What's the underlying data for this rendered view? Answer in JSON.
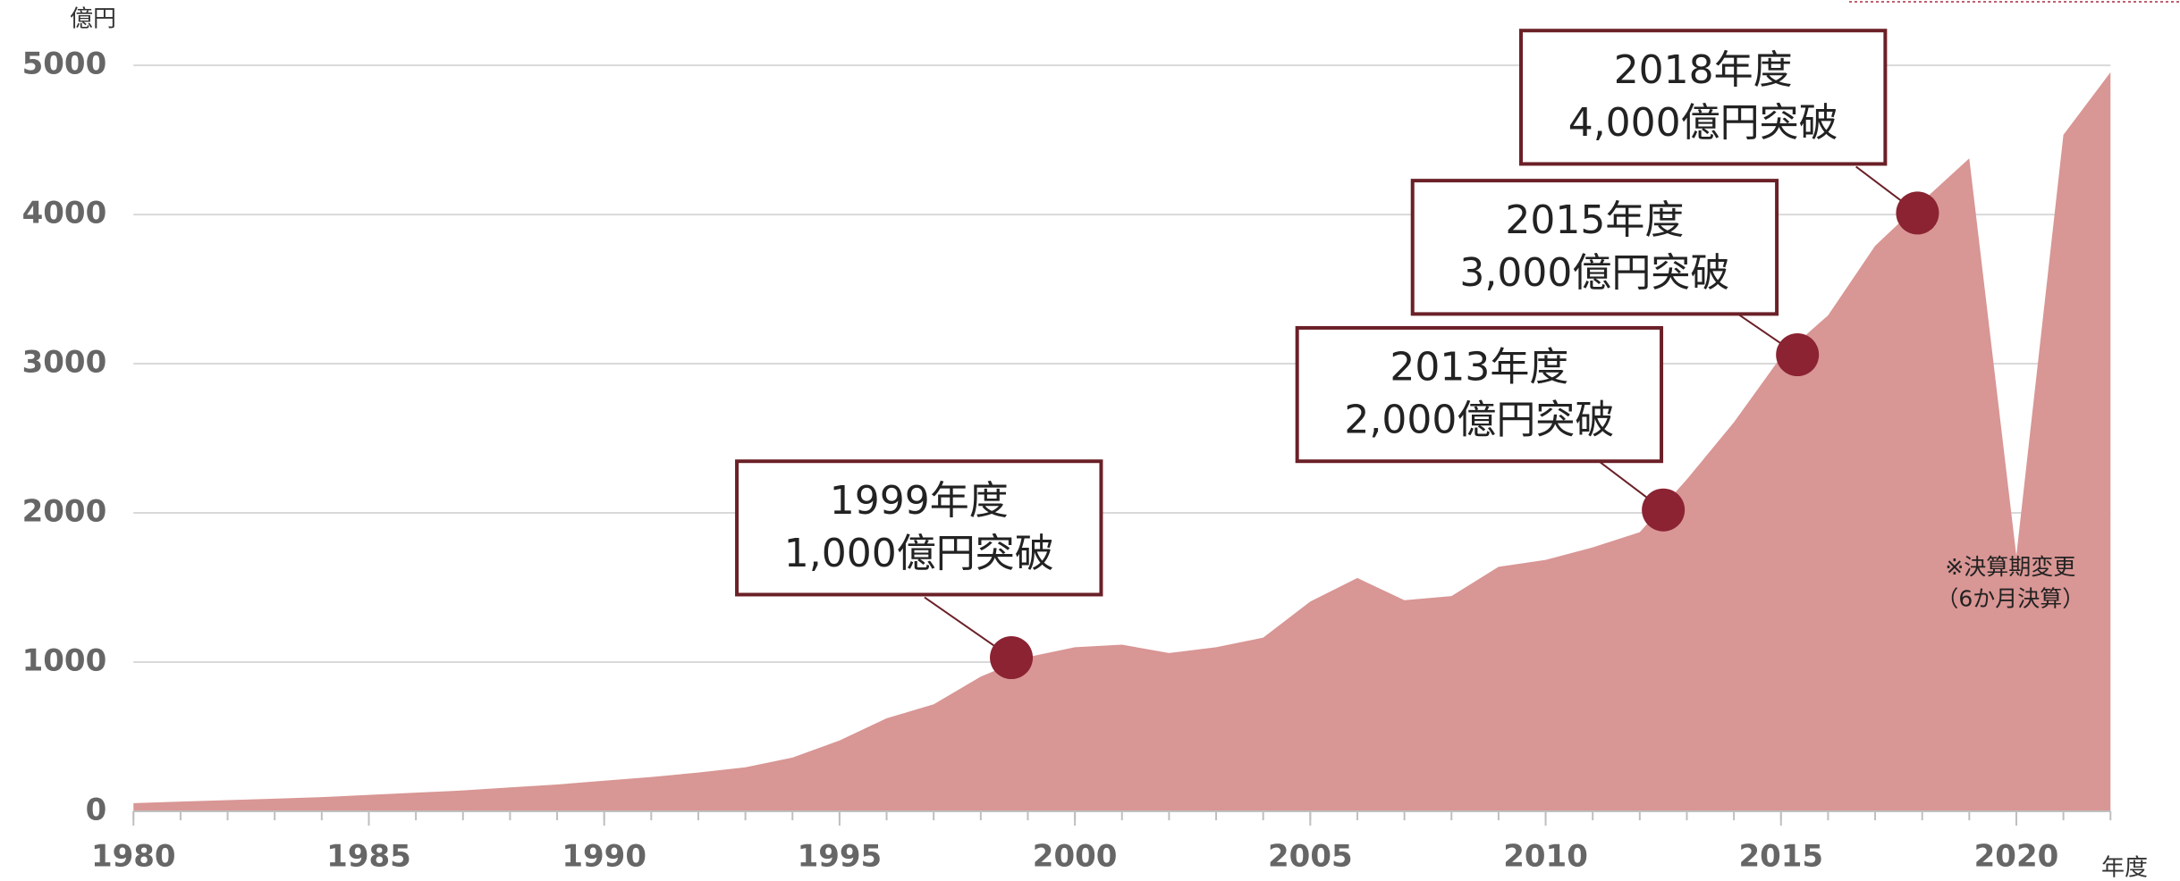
{
  "chart_data": {
    "type": "area",
    "y_unit": "億円",
    "x_label": "年度",
    "x": [
      1980,
      1981,
      1982,
      1983,
      1984,
      1985,
      1986,
      1987,
      1988,
      1989,
      1990,
      1991,
      1992,
      1993,
      1994,
      1995,
      1996,
      1997,
      1998,
      1999,
      2000,
      2001,
      2002,
      2003,
      2004,
      2005,
      2006,
      2007,
      2008,
      2009,
      2010,
      2011,
      2012,
      2013,
      2014,
      2015,
      2016,
      2017,
      2018,
      2019,
      2020,
      2021,
      2022
    ],
    "values": [
      55,
      65,
      75,
      85,
      95,
      110,
      125,
      140,
      160,
      180,
      205,
      230,
      260,
      295,
      360,
      475,
      624,
      717,
      903,
      1034,
      1100,
      1117,
      1061,
      1100,
      1164,
      1406,
      1564,
      1415,
      1443,
      1639,
      1685,
      1769,
      1871,
      2225,
      2607,
      3045,
      3324,
      3790,
      4088,
      4376,
      1713,
      4534,
      4953
    ],
    "color": "#d89694",
    "xlim": [
      1980,
      2022
    ],
    "xticks": [
      1980,
      1985,
      1990,
      1995,
      2000,
      2005,
      2010,
      2015,
      2020
    ],
    "ylim": [
      0,
      5000
    ],
    "yticks": [
      0,
      1000,
      2000,
      3000,
      4000,
      5000
    ],
    "grid": true,
    "marker_color": "#8b2332",
    "annotations": [
      {
        "lines": [
          "1999年度",
          "1,000億円突破"
        ],
        "x": 1998.65,
        "y": 1030
      },
      {
        "lines": [
          "2013年度",
          "2,000億円突破"
        ],
        "x": 2012.5,
        "y": 2020
      },
      {
        "lines": [
          "2015年度",
          "3,000億円突破"
        ],
        "x": 2015.35,
        "y": 3060
      },
      {
        "lines": [
          "2018年度",
          "4,000億円突破"
        ],
        "x": 2017.9,
        "y": 4010
      }
    ],
    "note": [
      "※決算期変更",
      "（6か月決算）"
    ]
  }
}
